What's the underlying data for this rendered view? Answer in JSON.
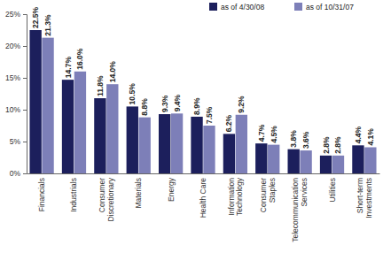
{
  "chart_data": {
    "type": "bar",
    "categories": [
      "Financials",
      "Industrials",
      "Consumer Discretionary",
      "Materials",
      "Energy",
      "Health Care",
      "Information Technology",
      "Consumer Staples",
      "Telecommunication Services",
      "Utilities",
      "Short-term Investments"
    ],
    "series": [
      {
        "name": "as of 4/30/08",
        "color": "#1c1f5c",
        "values": [
          22.5,
          14.7,
          11.8,
          10.5,
          9.3,
          8.9,
          6.2,
          4.7,
          3.8,
          2.8,
          4.4
        ],
        "value_labels": [
          "22.5%",
          "14.7%",
          "11.8%",
          "10.5%",
          "9.3%",
          "8.9%",
          "6.2%",
          "4.7%",
          "3.8%",
          "2.8%",
          "4.4%"
        ]
      },
      {
        "name": "as of 10/31/07",
        "color": "#7d7fb8",
        "values": [
          21.3,
          16.0,
          14.0,
          8.8,
          9.4,
          7.5,
          9.2,
          4.5,
          3.6,
          2.8,
          4.1
        ],
        "value_labels": [
          "21.3%",
          "16.0%",
          "14.0%",
          "8.8%",
          "9.4%",
          "7.5%",
          "9.2%",
          "4.5%",
          "3.6%",
          "2.8%",
          "4.1%"
        ]
      }
    ],
    "ylim": [
      0,
      25
    ],
    "yticks": [
      {
        "value": 0,
        "label": "0%"
      },
      {
        "value": 5,
        "label": "5%"
      },
      {
        "value": 10,
        "label": "10%"
      },
      {
        "value": 15,
        "label": "15%"
      },
      {
        "value": 20,
        "label": "20%"
      },
      {
        "value": 25,
        "label": "25%"
      }
    ],
    "grid": false,
    "legend": "top-right",
    "data_labels": true
  }
}
